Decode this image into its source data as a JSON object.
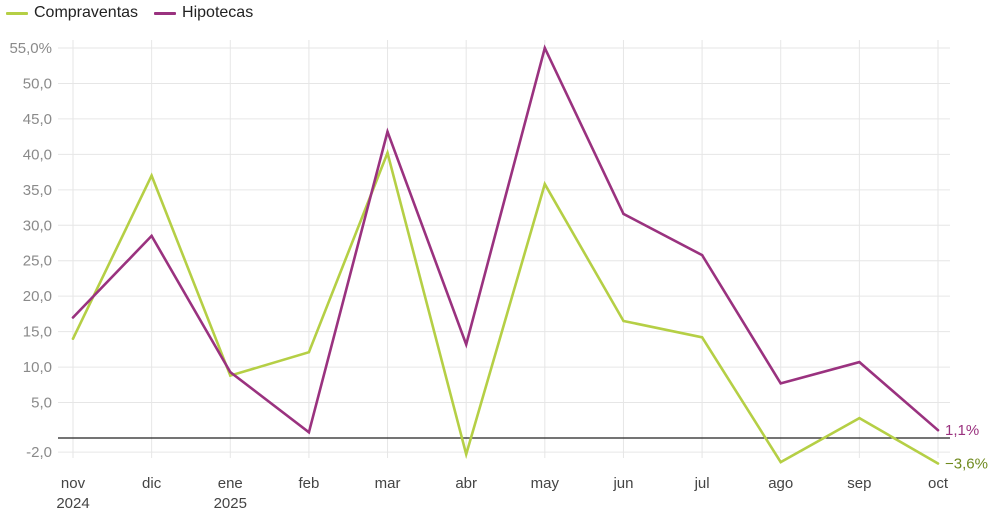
{
  "chart_data": {
    "type": "line",
    "categories": [
      "nov",
      "dic",
      "ene",
      "feb",
      "mar",
      "abr",
      "may",
      "jun",
      "jul",
      "ago",
      "sep",
      "oct"
    ],
    "category_sublabels": [
      "2024",
      "",
      "2025",
      "",
      "",
      "",
      "",
      "",
      "",
      "",
      "",
      ""
    ],
    "y_ticks": [
      {
        "value": 55,
        "label": "55,0%"
      },
      {
        "value": 50,
        "label": "50,0"
      },
      {
        "value": 45,
        "label": "45,0"
      },
      {
        "value": 40,
        "label": "40,0"
      },
      {
        "value": 35,
        "label": "35,0"
      },
      {
        "value": 30,
        "label": "30,0"
      },
      {
        "value": 25,
        "label": "25,0"
      },
      {
        "value": 20,
        "label": "20,0"
      },
      {
        "value": 15,
        "label": "15,0"
      },
      {
        "value": 10,
        "label": "10,0"
      },
      {
        "value": 5,
        "label": "5,0"
      },
      {
        "value": -2,
        "label": "-2,0"
      }
    ],
    "ylim": [
      -3.6,
      55
    ],
    "grid": true,
    "series": [
      {
        "name": "Compraventas",
        "color": "#b5cf45",
        "values": [
          14.0,
          37.0,
          8.8,
          12.1,
          40.2,
          -2.3,
          35.8,
          16.5,
          14.2,
          -3.4,
          2.8,
          -3.6
        ],
        "end_label": "−3,6%",
        "end_label_color": "#6f8a1e"
      },
      {
        "name": "Hipotecas",
        "color": "#9a327f",
        "values": [
          17.0,
          28.5,
          9.3,
          0.8,
          43.2,
          13.2,
          55.0,
          31.6,
          25.8,
          7.7,
          10.7,
          1.1
        ],
        "end_label": "1,1%",
        "end_label_color": "#9a327f"
      }
    ]
  }
}
